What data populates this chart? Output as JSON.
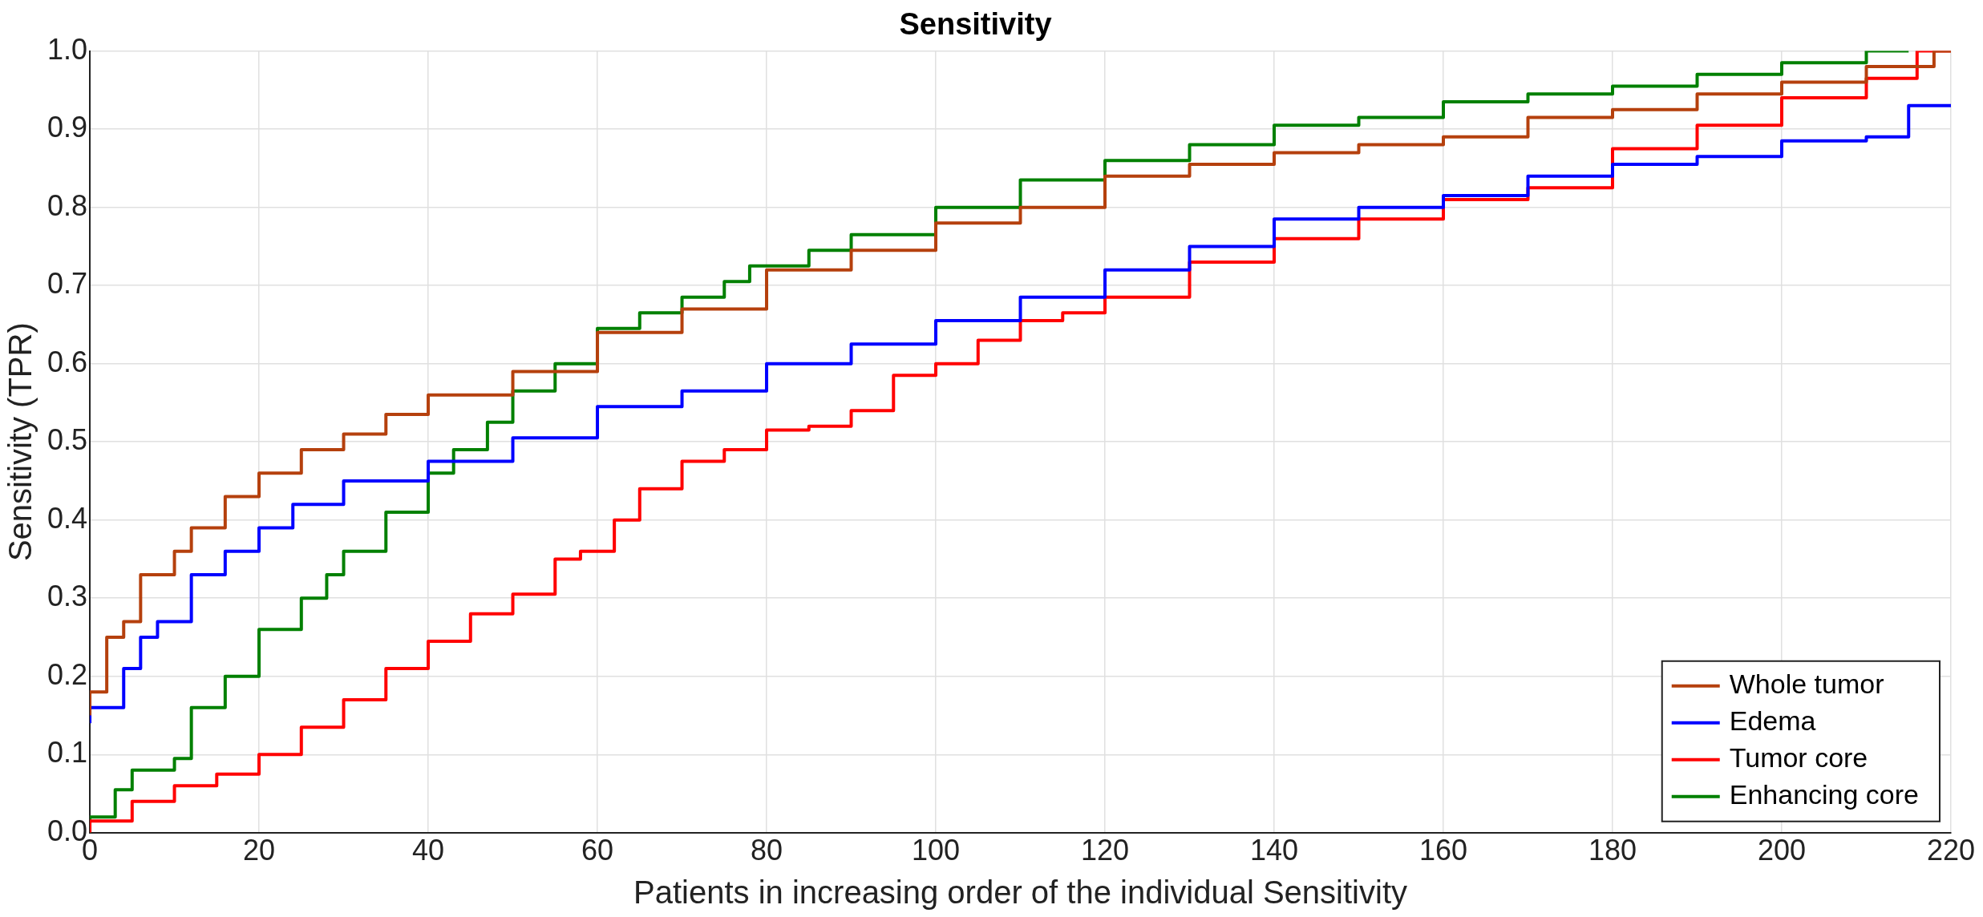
{
  "chart_data": {
    "type": "step",
    "title": "Sensitivity",
    "xlabel": "Patients in increasing order of the individual Sensitivity",
    "ylabel": "Sensitivity (TPR)",
    "xlim": [
      0,
      220
    ],
    "xticks": [
      0,
      20,
      40,
      60,
      80,
      100,
      120,
      140,
      160,
      180,
      200,
      220
    ],
    "ylim": [
      0,
      1
    ],
    "yticks": [
      {
        "value": 0,
        "label": "0.0"
      },
      0.1,
      0.2,
      0.3,
      0.4,
      0.5,
      0.6,
      0.7,
      0.8,
      0.9,
      {
        "value": 1,
        "label": "1.0"
      }
    ],
    "grid": true,
    "legend": "bottom right",
    "marker": "none",
    "line_style": "solid",
    "series": [
      {
        "name": "Whole tumor",
        "color": "#b5400d",
        "x": [
          0,
          2,
          4,
          6,
          10,
          12,
          16,
          20,
          25,
          30,
          35,
          40,
          50,
          60,
          70,
          80,
          90,
          100,
          110,
          120,
          130,
          140,
          150,
          160,
          170,
          180,
          190,
          200,
          210,
          218,
          220
        ],
        "values": [
          0.15,
          0.18,
          0.25,
          0.27,
          0.33,
          0.36,
          0.39,
          0.43,
          0.46,
          0.49,
          0.51,
          0.535,
          0.56,
          0.59,
          0.64,
          0.67,
          0.72,
          0.745,
          0.78,
          0.8,
          0.84,
          0.855,
          0.87,
          0.88,
          0.89,
          0.915,
          0.925,
          0.945,
          0.96,
          0.98,
          1.0
        ]
      },
      {
        "name": "Edema",
        "color": "#0000ff",
        "x": [
          0,
          4,
          6,
          8,
          12,
          16,
          20,
          24,
          30,
          40,
          50,
          60,
          70,
          80,
          90,
          100,
          110,
          120,
          130,
          140,
          150,
          160,
          170,
          180,
          190,
          200,
          210,
          215,
          220
        ],
        "values": [
          0.14,
          0.16,
          0.21,
          0.25,
          0.27,
          0.33,
          0.36,
          0.39,
          0.42,
          0.45,
          0.475,
          0.505,
          0.545,
          0.565,
          0.6,
          0.625,
          0.655,
          0.685,
          0.72,
          0.75,
          0.785,
          0.8,
          0.815,
          0.84,
          0.855,
          0.865,
          0.885,
          0.89,
          0.93
        ]
      },
      {
        "name": "Tumor core",
        "color": "#ff0000",
        "x": [
          0,
          5,
          10,
          15,
          20,
          25,
          30,
          35,
          40,
          45,
          50,
          55,
          58,
          62,
          65,
          70,
          75,
          80,
          85,
          90,
          95,
          100,
          105,
          110,
          115,
          120,
          130,
          140,
          150,
          160,
          170,
          180,
          190,
          200,
          210,
          216,
          220
        ],
        "values": [
          0,
          0.015,
          0.04,
          0.06,
          0.075,
          0.1,
          0.135,
          0.17,
          0.21,
          0.245,
          0.28,
          0.305,
          0.35,
          0.36,
          0.4,
          0.44,
          0.475,
          0.49,
          0.515,
          0.52,
          0.54,
          0.585,
          0.6,
          0.63,
          0.655,
          0.665,
          0.685,
          0.73,
          0.76,
          0.785,
          0.81,
          0.825,
          0.875,
          0.905,
          0.94,
          0.965,
          1.0
        ]
      },
      {
        "name": "Enhancing core",
        "color": "#008000",
        "x": [
          0,
          3,
          5,
          10,
          12,
          16,
          20,
          25,
          28,
          30,
          35,
          40,
          43,
          47,
          50,
          55,
          60,
          65,
          70,
          75,
          78,
          85,
          90,
          100,
          110,
          120,
          130,
          140,
          150,
          160,
          170,
          180,
          190,
          200,
          210,
          215
        ],
        "values": [
          0,
          0.02,
          0.055,
          0.08,
          0.095,
          0.16,
          0.2,
          0.26,
          0.3,
          0.33,
          0.36,
          0.41,
          0.46,
          0.49,
          0.525,
          0.565,
          0.6,
          0.645,
          0.665,
          0.685,
          0.705,
          0.725,
          0.745,
          0.765,
          0.8,
          0.835,
          0.86,
          0.88,
          0.905,
          0.915,
          0.935,
          0.945,
          0.955,
          0.97,
          0.985,
          1.0
        ]
      }
    ]
  }
}
